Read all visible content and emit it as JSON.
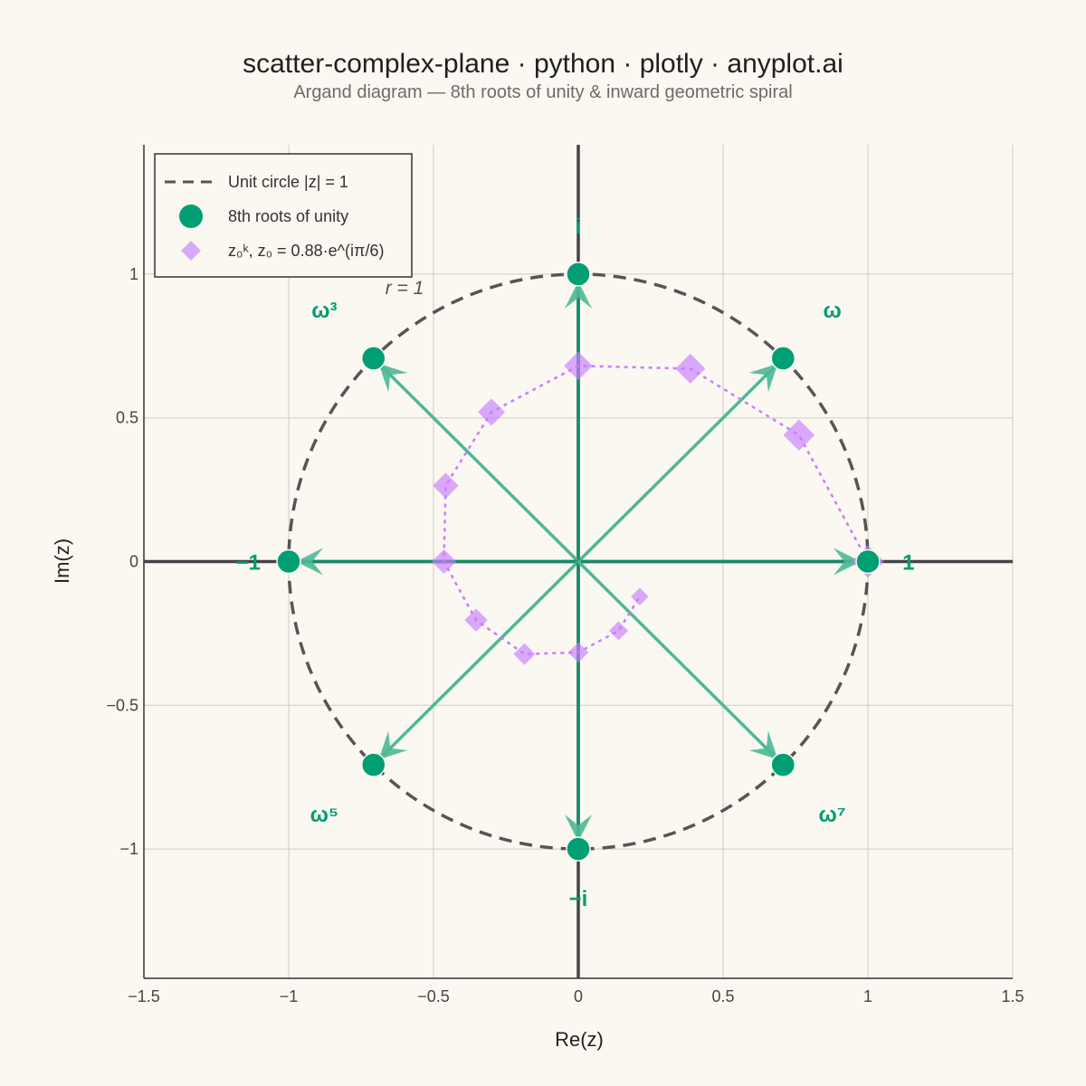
{
  "chart_data": {
    "type": "scatter",
    "title": "scatter-complex-plane · python · plotly · anyplot.ai",
    "subtitle": "Argand diagram — 8th roots of unity & inward geometric spiral",
    "xlabel": "Re(z)",
    "ylabel": "Im(z)",
    "xlim": [
      -1.5,
      1.5
    ],
    "ylim": [
      -1.45,
      1.45
    ],
    "x_ticks": [
      {
        "value": -1.5,
        "label": "−1.5"
      },
      {
        "value": -1,
        "label": "−1"
      },
      {
        "value": -0.5,
        "label": "−0.5"
      },
      {
        "value": 0,
        "label": "0"
      },
      {
        "value": 0.5,
        "label": "0.5"
      },
      {
        "value": 1,
        "label": "1"
      },
      {
        "value": 1.5,
        "label": "1.5"
      }
    ],
    "y_ticks": [
      {
        "value": -1,
        "label": "−1"
      },
      {
        "value": -0.5,
        "label": "−0.5"
      },
      {
        "value": 0,
        "label": "0"
      },
      {
        "value": 0.5,
        "label": "0.5"
      },
      {
        "value": 1,
        "label": "1"
      }
    ],
    "grid": true,
    "legend_position": "top-left",
    "colors": {
      "roots": "#009E73",
      "spiral": "#C77DFF",
      "circle": "#555555",
      "axis": "#333333",
      "background": "#FAF8F1"
    },
    "unit_circle": {
      "name": "Unit circle |z| = 1",
      "radius": 1,
      "annotation": "r = 1"
    },
    "roots": {
      "name": "8th roots of unity",
      "points": [
        {
          "re": 1,
          "im": 0,
          "label": "1"
        },
        {
          "re": 0.7071,
          "im": 0.7071,
          "label": "ω"
        },
        {
          "re": 0,
          "im": 1,
          "label": "i"
        },
        {
          "re": -0.7071,
          "im": 0.7071,
          "label": "ω³"
        },
        {
          "re": -1,
          "im": 0,
          "label": "−1"
        },
        {
          "re": -0.7071,
          "im": -0.7071,
          "label": "ω⁵"
        },
        {
          "re": 0,
          "im": -1,
          "label": "−i"
        },
        {
          "re": 0.7071,
          "im": -0.7071,
          "label": "ω⁷"
        }
      ]
    },
    "spiral": {
      "name": "z₀ᵏ, z₀ = 0.88·e^(iπ/6)",
      "points": [
        {
          "re": 1.0,
          "im": 0.0
        },
        {
          "re": 0.762,
          "im": 0.44
        },
        {
          "re": 0.387,
          "im": 0.671
        },
        {
          "re": 0.0,
          "im": 0.681
        },
        {
          "re": -0.3,
          "im": 0.52
        },
        {
          "re": -0.458,
          "im": 0.264
        },
        {
          "re": -0.464,
          "im": 0.0
        },
        {
          "re": -0.353,
          "im": -0.204
        },
        {
          "re": -0.186,
          "im": -0.322
        },
        {
          "re": 0.0,
          "im": -0.316
        },
        {
          "re": 0.139,
          "im": -0.241
        },
        {
          "re": 0.212,
          "im": -0.122
        }
      ]
    }
  }
}
